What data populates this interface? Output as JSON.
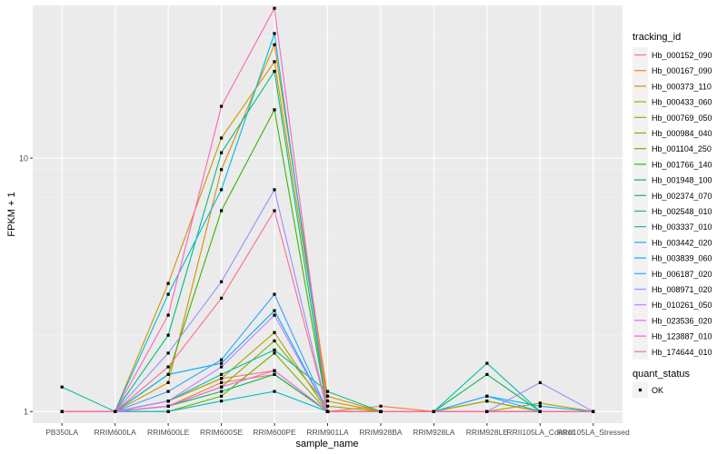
{
  "chart_data": {
    "type": "line",
    "title": "",
    "xlabel": "sample_name",
    "ylabel": "FPKM + 1",
    "y_scale": "log10",
    "ylim": [
      0.9,
      40
    ],
    "y_ticks": [
      {
        "value": 1,
        "label": "1"
      },
      {
        "value": 10,
        "label": "10"
      }
    ],
    "categories": [
      "PB350LA",
      "RRIM600LA",
      "RRIM600LE",
      "RRIM600SE",
      "RRIM600PE",
      "RRIM901LA",
      "RRIM928BA",
      "RRIM928LA",
      "RRIM928LE",
      "RRII105LA_Control",
      "RRII105LA_Stressed"
    ],
    "legend": {
      "title": "tracking_id",
      "position": "right",
      "shape_title": "quant_status",
      "shape_entries": [
        "OK"
      ]
    },
    "series": [
      {
        "name": "Hb_000152_090",
        "color": "#F8766D",
        "values": [
          1,
          1,
          1.1,
          1.35,
          1.45,
          1,
          1,
          1,
          1,
          1,
          1
        ]
      },
      {
        "name": "Hb_000167_090",
        "color": "#EC8239",
        "values": [
          1,
          1,
          1.05,
          1.3,
          1.4,
          1,
          1.05,
          1,
          1,
          1,
          1
        ]
      },
      {
        "name": "Hb_000373_110",
        "color": "#DB8E00",
        "values": [
          1,
          1,
          1.3,
          9.0,
          28.0,
          1.15,
          1,
          1,
          1,
          1,
          1
        ]
      },
      {
        "name": "Hb_000433_060",
        "color": "#C79800",
        "values": [
          1,
          1,
          3.2,
          12.0,
          24.0,
          1.1,
          1,
          1,
          1.1,
          1,
          1
        ]
      },
      {
        "name": "Hb_000769_050",
        "color": "#AFA100",
        "values": [
          1,
          1,
          1.1,
          1.35,
          2.05,
          1,
          1,
          1,
          1,
          1.08,
          1
        ]
      },
      {
        "name": "Hb_000984_040",
        "color": "#93AA00",
        "values": [
          1,
          1,
          1.05,
          1.25,
          1.9,
          1.05,
          1,
          1,
          1.1,
          1,
          1
        ]
      },
      {
        "name": "Hb_001104_250",
        "color": "#72B000",
        "values": [
          1,
          1,
          1.0,
          1.15,
          1.7,
          1,
          1,
          1,
          1,
          1,
          1
        ]
      },
      {
        "name": "Hb_001766_140",
        "color": "#39B600",
        "values": [
          1,
          1,
          1.4,
          6.2,
          15.5,
          1,
          1,
          1,
          1,
          1,
          1
        ]
      },
      {
        "name": "Hb_001948_100",
        "color": "#00BB4E",
        "values": [
          1,
          1,
          1.05,
          1.2,
          1.4,
          1,
          1,
          1,
          1.4,
          1,
          1
        ]
      },
      {
        "name": "Hb_002374_070",
        "color": "#00BF7D",
        "values": [
          1,
          1,
          2.0,
          10.5,
          22.0,
          1,
          1,
          1,
          1,
          1,
          1
        ]
      },
      {
        "name": "Hb_002548_010",
        "color": "#00C1A3",
        "values": [
          1.25,
          1,
          1.1,
          1.4,
          1.75,
          1.2,
          1,
          1,
          1.55,
          1,
          1
        ]
      },
      {
        "name": "Hb_003337_010",
        "color": "#00BFC4",
        "values": [
          1,
          1,
          1.0,
          1.1,
          1.2,
          1,
          1,
          1,
          1,
          1,
          1
        ]
      },
      {
        "name": "Hb_003442_020",
        "color": "#00BAE0",
        "values": [
          1,
          1,
          2.9,
          7.5,
          31.0,
          1,
          1,
          1,
          1.15,
          1.05,
          1
        ]
      },
      {
        "name": "Hb_003839_060",
        "color": "#00B0F6",
        "values": [
          1,
          1,
          1.4,
          1.55,
          2.5,
          1,
          1,
          1,
          1,
          1,
          1
        ]
      },
      {
        "name": "Hb_006187_020",
        "color": "#35A2FF",
        "values": [
          1,
          1,
          1.2,
          1.6,
          2.9,
          1,
          1,
          1,
          1.15,
          1,
          1
        ]
      },
      {
        "name": "Hb_008971_020",
        "color": "#9590FF",
        "values": [
          1,
          1,
          1.7,
          3.25,
          7.5,
          1,
          1,
          1,
          1,
          1.3,
          1
        ]
      },
      {
        "name": "Hb_010261_050",
        "color": "#C77CFF",
        "values": [
          1,
          1,
          1.1,
          1.5,
          2.4,
          1,
          1,
          1,
          1,
          1,
          1
        ]
      },
      {
        "name": "Hb_023536_020",
        "color": "#E76BF3",
        "values": [
          1,
          1,
          1.05,
          1.25,
          1.45,
          1,
          1,
          1,
          1,
          1,
          1
        ]
      },
      {
        "name": "Hb_123887_010",
        "color": "#FF62BC",
        "values": [
          1,
          1,
          2.4,
          16.0,
          39.0,
          1,
          1,
          1,
          1,
          1,
          1
        ]
      },
      {
        "name": "Hb_174644_010",
        "color": "#FF6C91",
        "values": [
          1,
          1,
          1.5,
          2.8,
          6.2,
          1,
          1,
          1,
          1,
          1,
          1
        ]
      }
    ]
  }
}
